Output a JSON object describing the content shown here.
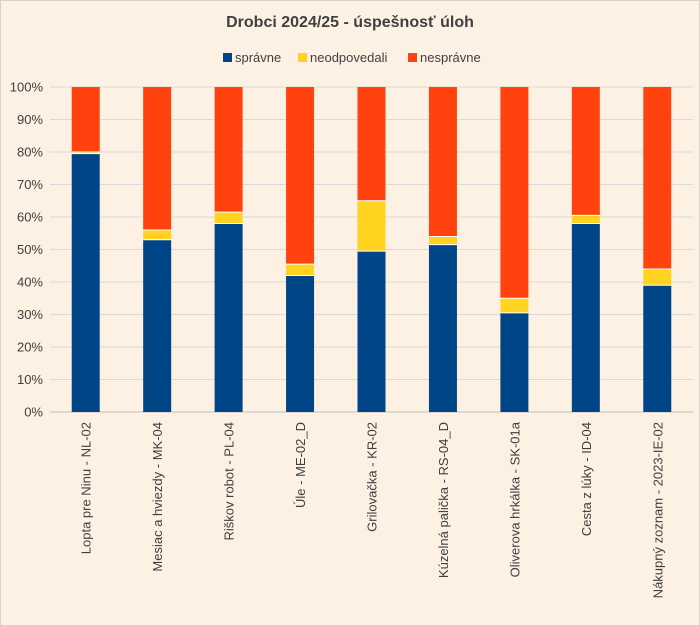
{
  "chart_data": {
    "type": "bar",
    "stacked": true,
    "title": "Drobci 2024/25 - úspešnosť úloh",
    "legend_position": "top",
    "categories": [
      "Lopta pre Ninu - NL-02",
      "Mesiac a hviezdy - MK-04",
      "Riškov robot - PL-04",
      "Úle - ME-02_D",
      "Grilovačka - KR-02",
      "Kúzelná palička - RS-04_D",
      "Oliverova hrkálka - SK-01a",
      "Cesta z lúky - ID-04",
      "Nákupný zoznam - 2023-IE-02"
    ],
    "series": [
      {
        "name": "správne",
        "color": "#004586",
        "values": [
          79.5,
          53,
          58,
          42,
          49.5,
          51.5,
          30.5,
          58,
          39
        ]
      },
      {
        "name": "neodpovedali",
        "color": "#ffd320",
        "values": [
          0.5,
          3,
          3.5,
          3.5,
          15.5,
          2.5,
          4.5,
          2.5,
          5
        ]
      },
      {
        "name": "nesprávne",
        "color": "#ff420e",
        "values": [
          20,
          44,
          38.5,
          54.5,
          35,
          46,
          65,
          39.5,
          56
        ]
      }
    ],
    "ylim": [
      0,
      100
    ],
    "y_ticks": [
      "0%",
      "10%",
      "20%",
      "30%",
      "40%",
      "50%",
      "60%",
      "70%",
      "80%",
      "90%",
      "100%"
    ],
    "grid": true,
    "xlabel": "",
    "ylabel": ""
  }
}
